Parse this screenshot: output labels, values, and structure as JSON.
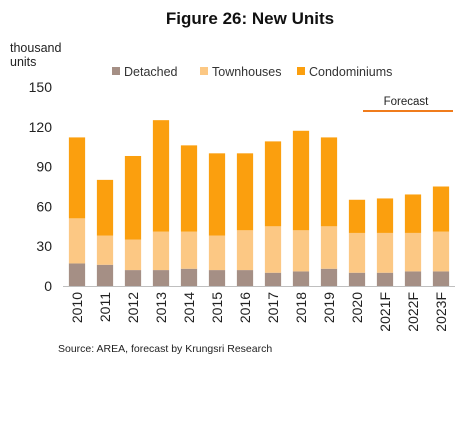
{
  "chart_data": {
    "type": "bar",
    "stacked": true,
    "title": "Figure 26: New Units",
    "ylabel_line1": "thousand",
    "ylabel_line2": "units",
    "ylim": [
      0,
      150
    ],
    "yticks": [
      0,
      30,
      60,
      90,
      120,
      150
    ],
    "categories": [
      "2010",
      "2011",
      "2012",
      "2013",
      "2014",
      "2015",
      "2016",
      "2017",
      "2018",
      "2019",
      "2020",
      "2021F",
      "2022F",
      "2023F"
    ],
    "series": [
      {
        "name": "Detached",
        "color": "#a58f85",
        "values": [
          17,
          16,
          12,
          12,
          13,
          12,
          12,
          10,
          11,
          13,
          10,
          10,
          11,
          11
        ]
      },
      {
        "name": "Townhouses",
        "color": "#fcc884",
        "values": [
          34,
          22,
          23,
          29,
          28,
          26,
          30,
          35,
          31,
          32,
          30,
          30,
          29,
          30
        ]
      },
      {
        "name": "Condominiums",
        "color": "#fb9f0e",
        "values": [
          61,
          42,
          63,
          84,
          65,
          62,
          58,
          64,
          75,
          67,
          25,
          26,
          29,
          34
        ]
      }
    ],
    "legend_position": "top",
    "annotation": {
      "label": "Forecast",
      "color": "#f07c1c",
      "covers_from": "2021F",
      "covers_to": "2023F"
    },
    "grid": false,
    "source": "Source: AREA, forecast by Krungsri Research"
  }
}
